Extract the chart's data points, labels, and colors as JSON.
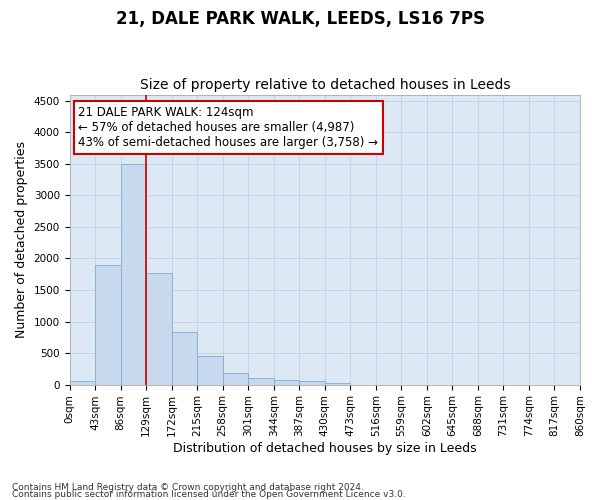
{
  "title": "21, DALE PARK WALK, LEEDS, LS16 7PS",
  "subtitle": "Size of property relative to detached houses in Leeds",
  "xlabel": "Distribution of detached houses by size in Leeds",
  "ylabel": "Number of detached properties",
  "footnote1": "Contains HM Land Registry data © Crown copyright and database right 2024.",
  "footnote2": "Contains public sector information licensed under the Open Government Licence v3.0.",
  "property_label": "21 DALE PARK WALK: 124sqm",
  "annotation_line1": "← 57% of detached houses are smaller (4,987)",
  "annotation_line2": "43% of semi-detached houses are larger (3,758) →",
  "bar_edges": [
    0,
    43,
    86,
    129,
    172,
    215,
    258,
    301,
    344,
    387,
    430,
    473,
    516,
    559,
    602,
    645,
    688,
    731,
    774,
    817,
    860
  ],
  "bar_heights": [
    50,
    1900,
    3500,
    1770,
    840,
    455,
    190,
    105,
    75,
    50,
    30,
    0,
    0,
    0,
    0,
    0,
    0,
    0,
    0,
    0
  ],
  "bar_color": "#c8d9ee",
  "bar_edgecolor": "#7bafd4",
  "vline_x": 129,
  "vline_color": "#cc0000",
  "annotation_box_edgecolor": "#cc0000",
  "annotation_box_facecolor": "white",
  "ylim": [
    0,
    4600
  ],
  "yticks": [
    0,
    500,
    1000,
    1500,
    2000,
    2500,
    3000,
    3500,
    4000,
    4500
  ],
  "grid_color": "#c5d5e8",
  "background_color": "#dce9f5",
  "title_fontsize": 12,
  "subtitle_fontsize": 10,
  "axis_label_fontsize": 9,
  "tick_fontsize": 7.5,
  "annotation_fontsize": 8.5,
  "footnote_fontsize": 6.5
}
